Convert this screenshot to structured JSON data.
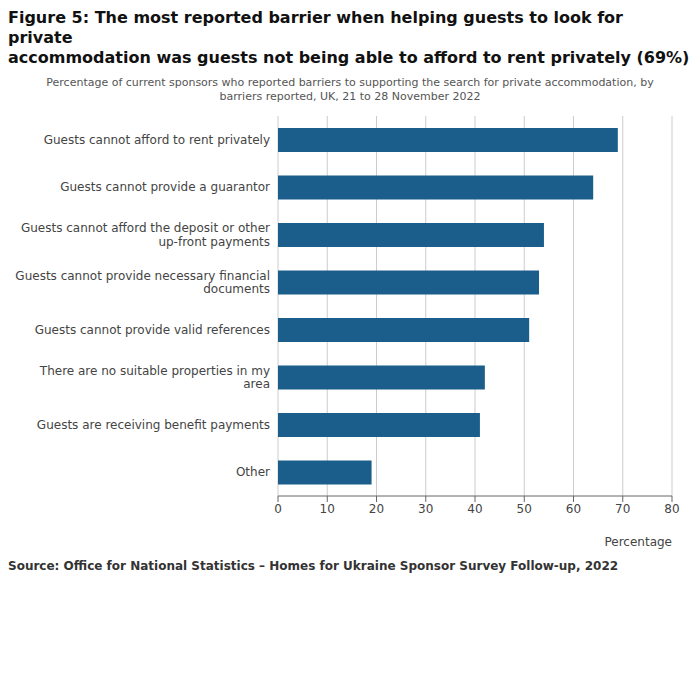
{
  "chart_data": {
    "type": "bar",
    "orientation": "horizontal",
    "title": "Figure 5: The most reported barrier when helping guests to look for private\naccommodation was guests not being able to afford to rent privately (69%)",
    "subtitle": "Percentage of current sponsors who reported barriers to supporting the search for private accommodation, by\nbarriers reported, UK, 21 to 28 November 2022",
    "source": "Source: Office for National Statistics – Homes for Ukraine Sponsor Survey Follow-up, 2022",
    "xlabel": "Percentage",
    "categories": [
      "Guests cannot afford to rent privately",
      "Guests cannot provide a guarantor",
      "Guests cannot afford the deposit or other\nup-front payments",
      "Guests cannot provide necessary financial\ndocuments",
      "Guests cannot provide valid references",
      "There are no suitable properties in my\narea",
      "Guests are receiving benefit payments",
      "Other"
    ],
    "values": [
      69,
      64,
      54,
      53,
      51,
      42,
      41,
      19
    ],
    "color": "#1b5e8c",
    "xlim": [
      0,
      80
    ],
    "xticks": [
      0,
      10,
      20,
      30,
      40,
      50,
      60,
      70,
      80
    ],
    "grid": true
  }
}
